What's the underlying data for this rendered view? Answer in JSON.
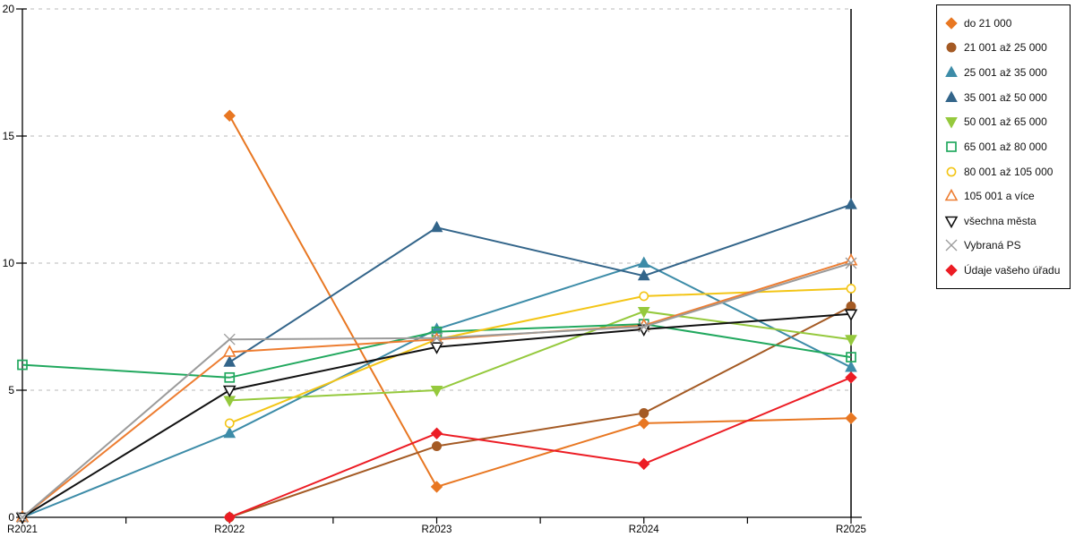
{
  "chart_data": {
    "type": "line",
    "title": "",
    "xlabel": "",
    "ylabel": "",
    "categories": [
      "R2021",
      "R2022",
      "R2023",
      "R2024",
      "R2025"
    ],
    "ylim": [
      0,
      20
    ],
    "yticks": [
      "0",
      "5",
      "10",
      "15",
      "20"
    ],
    "grid": "horizontal-dashed",
    "legend_position": "top-right-boxed",
    "colors": {
      "grid": "#c8c8c8",
      "axis": "#000000",
      "background": "#ffffff"
    },
    "series": [
      {
        "name": "do 21 000",
        "color": "#E87722",
        "marker": "diamond",
        "open": false,
        "values": [
          null,
          15.8,
          1.2,
          3.7,
          3.9
        ]
      },
      {
        "name": "21 001 až 25 000",
        "color": "#A45A24",
        "marker": "circle",
        "open": false,
        "values": [
          null,
          0,
          2.8,
          4.1,
          8.3
        ]
      },
      {
        "name": "25 001 až 35 000",
        "color": "#3D8CA8",
        "marker": "triangle-up",
        "open": false,
        "values": [
          0,
          3.3,
          7.4,
          10,
          5.9
        ]
      },
      {
        "name": "35 001 až 50 000",
        "color": "#33658A",
        "marker": "triangle-up",
        "open": false,
        "values": [
          null,
          6.1,
          11.4,
          9.5,
          12.3
        ]
      },
      {
        "name": "50 001 až 65 000",
        "color": "#95C93D",
        "marker": "triangle-down",
        "open": false,
        "values": [
          null,
          4.6,
          5.0,
          8.1,
          7.0
        ]
      },
      {
        "name": "65 001 až 80 000",
        "color": "#21A85E",
        "marker": "square",
        "open": true,
        "values": [
          6.0,
          5.5,
          7.3,
          7.6,
          6.3
        ]
      },
      {
        "name": "80 001 až 105 000",
        "color": "#F3C516",
        "marker": "circle",
        "open": true,
        "values": [
          null,
          3.7,
          7.0,
          8.7,
          9.0
        ]
      },
      {
        "name": "105 001 a více",
        "color": "#ED7D31",
        "marker": "triangle-up",
        "open": true,
        "values": [
          0,
          6.5,
          7.0,
          7.55,
          10.1
        ]
      },
      {
        "name": "všechna města",
        "color": "#111111",
        "marker": "triangle-down",
        "open": true,
        "values": [
          0,
          5.0,
          6.7,
          7.4,
          8.0
        ]
      },
      {
        "name": "Vybraná PS",
        "color": "#9B9B9B",
        "marker": "x",
        "open": true,
        "values": [
          0,
          7.0,
          7.05,
          7.5,
          10.0
        ]
      },
      {
        "name": "Údaje vašeho úřadu",
        "color": "#EC1C24",
        "marker": "diamond",
        "open": false,
        "values": [
          null,
          0,
          3.3,
          2.1,
          5.5
        ]
      }
    ]
  }
}
